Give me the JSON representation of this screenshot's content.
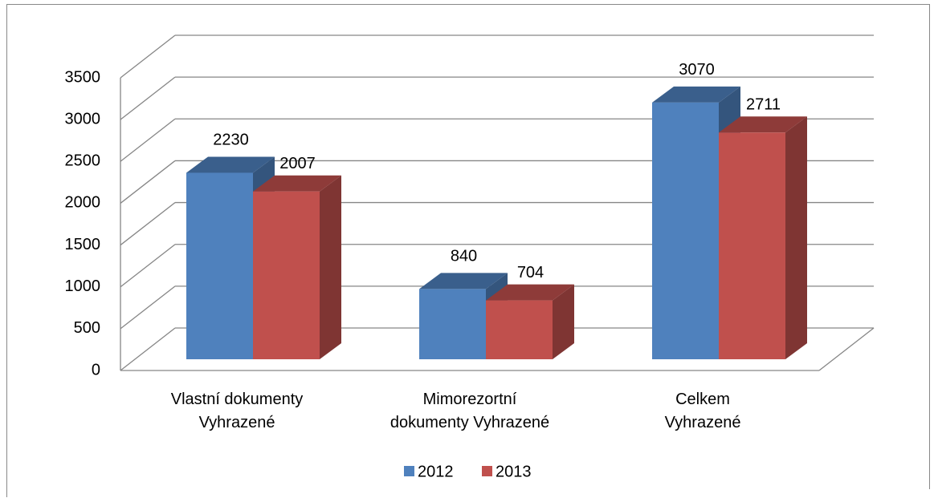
{
  "chart_data": {
    "type": "bar3d",
    "categories": [
      "Vlastní dokumenty\nVyhrazené",
      "Mimorezortní\ndokumenty Vyhrazené",
      "Celkem\nVyhrazené"
    ],
    "series": [
      {
        "name": "2012",
        "color": "#4f81bd",
        "values": [
          2230,
          840,
          3070
        ]
      },
      {
        "name": "2013",
        "color": "#c0504d",
        "values": [
          2007,
          704,
          2711
        ]
      }
    ],
    "ylim": [
      0,
      3500
    ],
    "yticks": [
      0,
      500,
      1000,
      1500,
      2000,
      2500,
      3000,
      3500
    ],
    "grid": true,
    "legend": "bottom"
  }
}
